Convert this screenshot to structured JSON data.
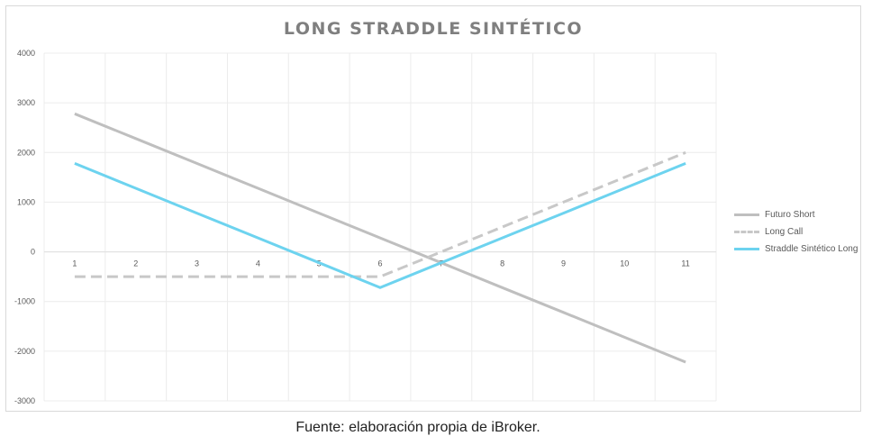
{
  "chart_data": {
    "type": "line",
    "title": "LONG STRADDLE SINTÉTICO",
    "x": [
      1,
      2,
      3,
      4,
      5,
      6,
      7,
      8,
      9,
      10,
      11
    ],
    "ylim": [
      -3000,
      4000
    ],
    "yticks": [
      -3000,
      -2000,
      -1000,
      0,
      1000,
      2000,
      3000,
      4000
    ],
    "grid": true,
    "legend_position": "right",
    "series": [
      {
        "name": "Futuro Short",
        "values": [
          2780,
          2280,
          1780,
          1280,
          780,
          280,
          -220,
          -720,
          -1220,
          -1720,
          -2220
        ],
        "color": "#bfbfbf",
        "style": "solid"
      },
      {
        "name": "Long Call",
        "values": [
          -500,
          -500,
          -500,
          -500,
          -500,
          -500,
          0,
          500,
          1000,
          1500,
          2000
        ],
        "color": "#c8c8c8",
        "style": "dashed"
      },
      {
        "name": "Straddle Sintético Long",
        "values": [
          1780,
          1280,
          780,
          280,
          -220,
          -720,
          -220,
          280,
          780,
          1280,
          1780
        ],
        "color": "#6dd3ef",
        "style": "solid"
      }
    ]
  },
  "caption": "Fuente: elaboración propia de iBroker."
}
